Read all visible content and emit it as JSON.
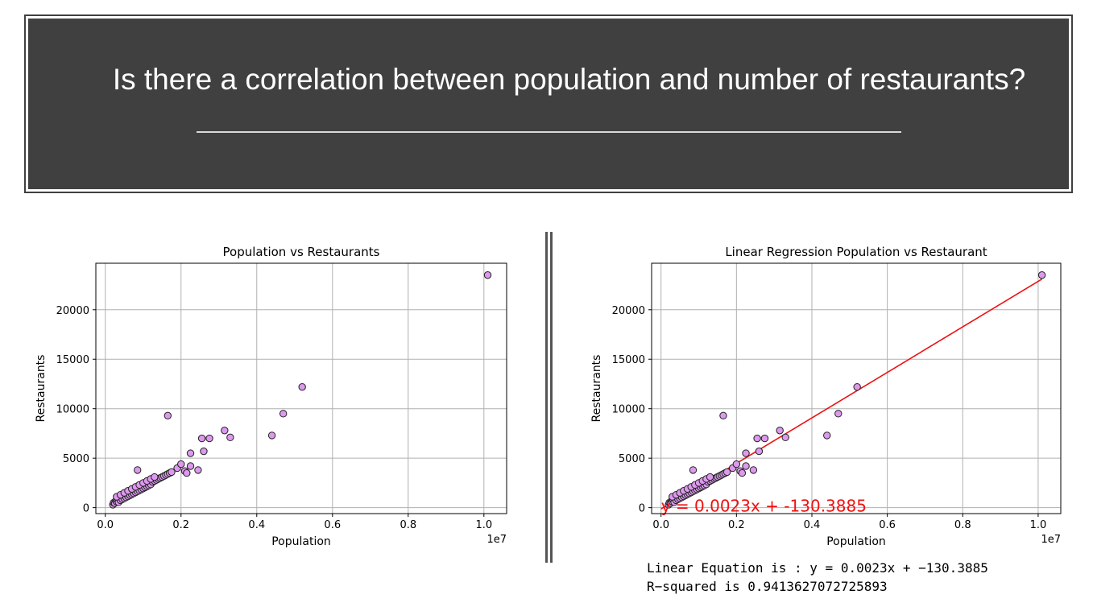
{
  "banner": {
    "title": "Is there a correlation between population and number of restaurants?"
  },
  "chart_data": [
    {
      "type": "scatter",
      "title": "Population vs Restaurants",
      "xlabel": "Population",
      "ylabel": "Restaurants",
      "x_offset_label": "1e7",
      "xlim": [
        -0.025,
        1.06
      ],
      "ylim": [
        -600,
        24700
      ],
      "x_ticks": [
        0.0,
        0.2,
        0.4,
        0.6,
        0.8,
        1.0
      ],
      "x_tick_labels": [
        "0.0",
        "0.2",
        "0.4",
        "0.6",
        "0.8",
        "1.0"
      ],
      "y_ticks": [
        0,
        5000,
        10000,
        15000,
        20000
      ],
      "y_tick_labels": [
        "0",
        "5000",
        "10000",
        "15000",
        "20000"
      ],
      "grid": true,
      "marker_color": "#dd99ee",
      "x": [
        0.02,
        0.022,
        0.025,
        0.028,
        0.03,
        0.032,
        0.035,
        0.038,
        0.04,
        0.043,
        0.045,
        0.048,
        0.05,
        0.052,
        0.055,
        0.058,
        0.06,
        0.062,
        0.065,
        0.068,
        0.07,
        0.072,
        0.075,
        0.078,
        0.08,
        0.082,
        0.085,
        0.088,
        0.09,
        0.093,
        0.095,
        0.098,
        0.1,
        0.102,
        0.105,
        0.108,
        0.11,
        0.112,
        0.115,
        0.118,
        0.12,
        0.125,
        0.13,
        0.135,
        0.14,
        0.145,
        0.15,
        0.155,
        0.16,
        0.165,
        0.17,
        0.175,
        0.03,
        0.04,
        0.05,
        0.06,
        0.07,
        0.08,
        0.09,
        0.1,
        0.11,
        0.12,
        0.13,
        0.085,
        0.165,
        0.19,
        0.2,
        0.21,
        0.215,
        0.225,
        0.225,
        0.245,
        0.255,
        0.26,
        0.275,
        0.315,
        0.33,
        0.44,
        0.47,
        0.52,
        1.01
      ],
      "y": [
        300,
        500,
        450,
        700,
        600,
        800,
        550,
        900,
        750,
        1000,
        850,
        1100,
        950,
        1200,
        1050,
        1300,
        1150,
        1400,
        1250,
        1500,
        1350,
        1600,
        1450,
        1700,
        1550,
        1800,
        1650,
        1900,
        1750,
        2000,
        1850,
        2100,
        1950,
        2200,
        2050,
        2300,
        2150,
        2400,
        2250,
        2500,
        2350,
        2600,
        2700,
        2800,
        2900,
        3000,
        3100,
        3200,
        3300,
        3400,
        3500,
        3600,
        1100,
        1300,
        1500,
        1700,
        1900,
        2100,
        2300,
        2500,
        2700,
        2900,
        3100,
        3800,
        9300,
        4000,
        4400,
        3700,
        3500,
        4200,
        5500,
        3800,
        7000,
        5700,
        7000,
        7800,
        7100,
        7300,
        9500,
        12200,
        23500
      ]
    },
    {
      "type": "scatter",
      "title": "Linear Regression Population vs Restaurant",
      "xlabel": "Population",
      "ylabel": "Restaurants",
      "x_offset_label": "1e7",
      "xlim": [
        -0.025,
        1.06
      ],
      "ylim": [
        -600,
        24700
      ],
      "x_ticks": [
        0.0,
        0.2,
        0.4,
        0.6,
        0.8,
        1.0
      ],
      "x_tick_labels": [
        "0.0",
        "0.2",
        "0.4",
        "0.6",
        "0.8",
        "1.0"
      ],
      "y_ticks": [
        0,
        5000,
        10000,
        15000,
        20000
      ],
      "y_tick_labels": [
        "0",
        "5000",
        "10000",
        "15000",
        "20000"
      ],
      "grid": true,
      "marker_color": "#dd99ee",
      "line_color": "#ee1111",
      "regression": {
        "slope": 0.0023,
        "intercept": -130.3885,
        "x_start": 0.0,
        "x_end": 1.01
      },
      "annotation": "y = 0.0023x + -130.3885",
      "x": [
        0.02,
        0.022,
        0.025,
        0.028,
        0.03,
        0.032,
        0.035,
        0.038,
        0.04,
        0.043,
        0.045,
        0.048,
        0.05,
        0.052,
        0.055,
        0.058,
        0.06,
        0.062,
        0.065,
        0.068,
        0.07,
        0.072,
        0.075,
        0.078,
        0.08,
        0.082,
        0.085,
        0.088,
        0.09,
        0.093,
        0.095,
        0.098,
        0.1,
        0.102,
        0.105,
        0.108,
        0.11,
        0.112,
        0.115,
        0.118,
        0.12,
        0.125,
        0.13,
        0.135,
        0.14,
        0.145,
        0.15,
        0.155,
        0.16,
        0.165,
        0.17,
        0.175,
        0.03,
        0.04,
        0.05,
        0.06,
        0.07,
        0.08,
        0.09,
        0.1,
        0.11,
        0.12,
        0.13,
        0.085,
        0.165,
        0.19,
        0.2,
        0.21,
        0.215,
        0.225,
        0.225,
        0.245,
        0.255,
        0.26,
        0.275,
        0.315,
        0.33,
        0.44,
        0.47,
        0.52,
        1.01
      ],
      "y": [
        300,
        500,
        450,
        700,
        600,
        800,
        550,
        900,
        750,
        1000,
        850,
        1100,
        950,
        1200,
        1050,
        1300,
        1150,
        1400,
        1250,
        1500,
        1350,
        1600,
        1450,
        1700,
        1550,
        1800,
        1650,
        1900,
        1750,
        2000,
        1850,
        2100,
        1950,
        2200,
        2050,
        2300,
        2150,
        2400,
        2250,
        2500,
        2350,
        2600,
        2700,
        2800,
        2900,
        3000,
        3100,
        3200,
        3300,
        3400,
        3500,
        3600,
        1100,
        1300,
        1500,
        1700,
        1900,
        2100,
        2300,
        2500,
        2700,
        2900,
        3100,
        3800,
        9300,
        4000,
        4400,
        3700,
        3500,
        4200,
        5500,
        3800,
        7000,
        5700,
        7000,
        7800,
        7100,
        7300,
        9500,
        12200,
        23500
      ]
    }
  ],
  "output": {
    "line1": "Linear Equation is : y = 0.0023x + −130.3885",
    "line2": "R−squared is 0.9413627072725893"
  }
}
